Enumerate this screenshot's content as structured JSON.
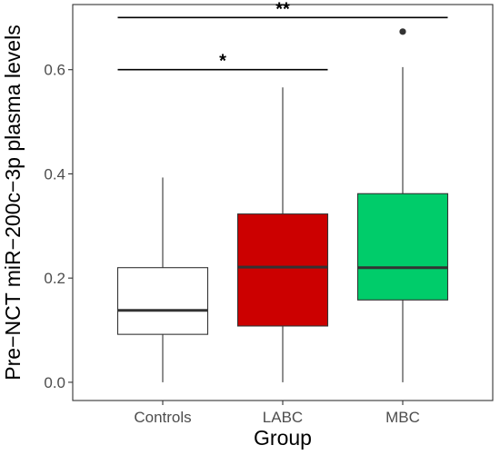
{
  "chart_data": {
    "type": "boxplot",
    "xlabel": "Group",
    "ylabel": "Pre−NCT miR−200c−3p plasma levels",
    "ylim": [
      -0.035,
      0.725
    ],
    "yticks": [
      0.0,
      0.2,
      0.4,
      0.6
    ],
    "ytick_labels": [
      "0.0",
      "0.2",
      "0.4",
      "0.6"
    ],
    "grid": false,
    "legend": "none",
    "categories": [
      "Controls",
      "LABC",
      "MBC"
    ],
    "boxes": [
      {
        "label": "Controls",
        "whisker_low": 0.0,
        "q1": 0.092,
        "median": 0.138,
        "q3": 0.22,
        "whisker_high": 0.393,
        "outliers": [],
        "color": "#ffffff"
      },
      {
        "label": "LABC",
        "whisker_low": 0.0,
        "q1": 0.108,
        "median": 0.221,
        "q3": 0.323,
        "whisker_high": 0.566,
        "outliers": [],
        "color": "#cc0000"
      },
      {
        "label": "MBC",
        "whisker_low": 0.0,
        "q1": 0.158,
        "median": 0.22,
        "q3": 0.362,
        "whisker_high": 0.605,
        "outliers": [
          0.673
        ],
        "color": "#00cc6a"
      }
    ],
    "annotations": [
      {
        "from": "Controls",
        "to": "LABC",
        "y": 0.6,
        "label": "*"
      },
      {
        "from": "Controls",
        "to": "MBC",
        "y": 0.7,
        "label": "**"
      }
    ]
  }
}
